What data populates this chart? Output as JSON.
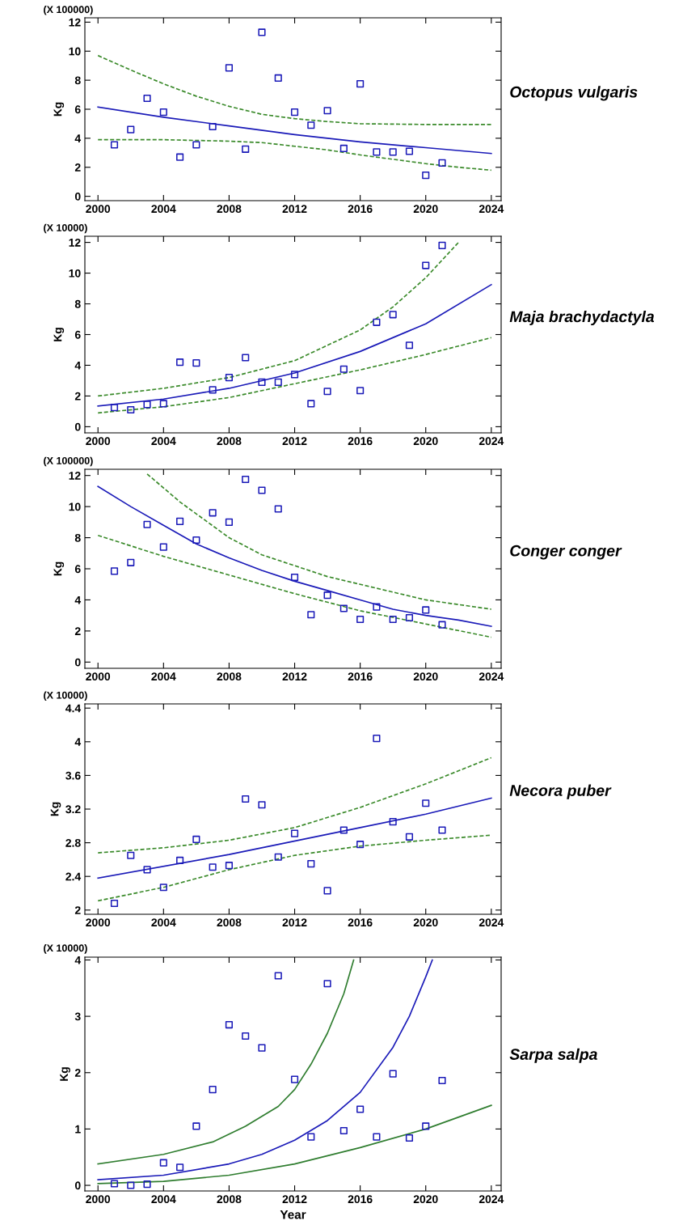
{
  "chart_data": [
    {
      "type": "scatter",
      "title": "Octopus vulgaris",
      "ylabel": "Kg",
      "annotations": [
        "(X 100000)"
      ],
      "xlim": [
        1999.2,
        2024.6
      ],
      "ylim": [
        -0.3,
        12.3
      ],
      "xticks": [
        2000,
        2004,
        2008,
        2012,
        2016,
        2020,
        2024
      ],
      "yticks": [
        0,
        2,
        4,
        6,
        8,
        10,
        12
      ],
      "series": [
        {
          "marker": "square",
          "color": "#1a1ab8",
          "x": [
            2001,
            2002,
            2003,
            2004,
            2005,
            2006,
            2007,
            2008,
            2009,
            2010,
            2011,
            2012,
            2013,
            2014,
            2015,
            2016,
            2017,
            2018,
            2019,
            2020,
            2021
          ],
          "values": [
            3.55,
            4.6,
            6.75,
            5.8,
            2.7,
            3.55,
            4.8,
            8.85,
            3.25,
            11.3,
            8.15,
            5.8,
            4.9,
            5.9,
            3.3,
            7.75,
            3.05,
            3.05,
            3.1,
            1.45,
            2.3
          ]
        },
        {
          "type": "line",
          "color": "#1a1ab8",
          "line_style": "solid",
          "x": [
            2000,
            2004,
            2008,
            2012,
            2016,
            2020,
            2024
          ],
          "values": [
            6.15,
            5.45,
            4.85,
            4.25,
            3.75,
            3.35,
            2.95
          ]
        },
        {
          "type": "line",
          "color": "#3a8a2a",
          "line_style": "dashed",
          "x": [
            2000,
            2002,
            2004,
            2006,
            2008,
            2010,
            2012,
            2014,
            2016,
            2020,
            2024
          ],
          "values": [
            9.7,
            8.7,
            7.75,
            6.9,
            6.2,
            5.65,
            5.35,
            5.15,
            5.0,
            4.95,
            4.95
          ]
        },
        {
          "type": "line",
          "color": "#3a8a2a",
          "line_style": "dashed",
          "x": [
            2000,
            2004,
            2008,
            2010,
            2012,
            2014,
            2016,
            2018,
            2020,
            2022,
            2024
          ],
          "values": [
            3.9,
            3.9,
            3.8,
            3.7,
            3.45,
            3.2,
            2.85,
            2.55,
            2.25,
            2.0,
            1.8
          ]
        }
      ]
    },
    {
      "type": "scatter",
      "title": "Maja brachydactyla",
      "ylabel": "Kg",
      "annotations": [
        "(X 10000)"
      ],
      "xlim": [
        1999.2,
        2024.6
      ],
      "ylim": [
        -0.4,
        12.4
      ],
      "xticks": [
        2000,
        2004,
        2008,
        2012,
        2016,
        2020,
        2024
      ],
      "yticks": [
        0,
        2,
        4,
        6,
        8,
        10,
        12
      ],
      "series": [
        {
          "marker": "square",
          "color": "#1a1ab8",
          "x": [
            2001,
            2002,
            2003,
            2004,
            2005,
            2006,
            2007,
            2008,
            2009,
            2010,
            2011,
            2012,
            2013,
            2014,
            2015,
            2016,
            2017,
            2018,
            2019,
            2020,
            2021
          ],
          "values": [
            1.25,
            1.1,
            1.45,
            1.5,
            4.2,
            4.15,
            2.4,
            3.2,
            4.5,
            2.9,
            2.9,
            3.4,
            1.5,
            2.3,
            3.75,
            2.35,
            6.8,
            7.3,
            5.3,
            10.5,
            11.8
          ]
        },
        {
          "type": "line",
          "color": "#1a1ab8",
          "line_style": "solid",
          "x": [
            2000,
            2004,
            2008,
            2012,
            2016,
            2020,
            2024
          ],
          "values": [
            1.35,
            1.8,
            2.5,
            3.5,
            4.9,
            6.7,
            9.25
          ]
        },
        {
          "type": "line",
          "color": "#3a8a2a",
          "line_style": "dashed",
          "x": [
            2000,
            2004,
            2008,
            2012,
            2016,
            2018,
            2020,
            2022
          ],
          "values": [
            2.0,
            2.5,
            3.2,
            4.3,
            6.3,
            7.8,
            9.7,
            12.0
          ]
        },
        {
          "type": "line",
          "color": "#3a8a2a",
          "line_style": "dashed",
          "x": [
            2000,
            2004,
            2008,
            2012,
            2016,
            2020,
            2024
          ],
          "values": [
            0.9,
            1.3,
            1.9,
            2.8,
            3.7,
            4.7,
            5.8
          ]
        }
      ]
    },
    {
      "type": "scatter",
      "title": "Conger conger",
      "ylabel": "Kg",
      "annotations": [
        "(X 100000)"
      ],
      "xlim": [
        1999.2,
        2024.6
      ],
      "ylim": [
        -0.4,
        12.4
      ],
      "xticks": [
        2000,
        2004,
        2008,
        2012,
        2016,
        2020,
        2024
      ],
      "yticks": [
        0,
        2,
        4,
        6,
        8,
        10,
        12
      ],
      "series": [
        {
          "marker": "square",
          "color": "#1a1ab8",
          "x": [
            2001,
            2002,
            2003,
            2004,
            2005,
            2006,
            2007,
            2008,
            2009,
            2010,
            2011,
            2012,
            2013,
            2014,
            2015,
            2016,
            2017,
            2018,
            2019,
            2020,
            2021
          ],
          "values": [
            5.85,
            6.4,
            8.85,
            7.4,
            9.05,
            7.85,
            9.6,
            9.0,
            11.75,
            11.05,
            9.85,
            5.45,
            3.05,
            4.3,
            3.45,
            2.75,
            3.55,
            2.75,
            2.85,
            3.35,
            2.4
          ]
        },
        {
          "type": "line",
          "color": "#1a1ab8",
          "line_style": "solid",
          "x": [
            2000,
            2002,
            2004,
            2006,
            2008,
            2010,
            2012,
            2014,
            2016,
            2018,
            2020,
            2022,
            2024
          ],
          "values": [
            11.3,
            10.0,
            8.8,
            7.6,
            6.7,
            5.9,
            5.2,
            4.6,
            4.0,
            3.4,
            3.0,
            2.7,
            2.3
          ]
        },
        {
          "type": "line",
          "color": "#3a8a2a",
          "line_style": "dashed",
          "x": [
            2003,
            2005,
            2008,
            2010,
            2012,
            2014,
            2016,
            2018,
            2020,
            2022,
            2024
          ],
          "values": [
            12.1,
            10.3,
            8.0,
            6.9,
            6.2,
            5.5,
            5.0,
            4.5,
            4.0,
            3.7,
            3.4
          ]
        },
        {
          "type": "line",
          "color": "#3a8a2a",
          "line_style": "dashed",
          "x": [
            2000,
            2004,
            2008,
            2012,
            2016,
            2020,
            2024
          ],
          "values": [
            8.15,
            6.8,
            5.6,
            4.4,
            3.3,
            2.45,
            1.6
          ]
        }
      ]
    },
    {
      "type": "scatter",
      "title": "Necora puber",
      "ylabel": "Kg",
      "annotations": [
        "(X 10000)"
      ],
      "xlim": [
        1999.2,
        2024.6
      ],
      "ylim": [
        1.95,
        4.45
      ],
      "xticks": [
        2000,
        2004,
        2008,
        2012,
        2016,
        2020,
        2024
      ],
      "yticks": [
        2,
        2.4,
        2.8,
        3.2,
        3.6,
        4,
        4.4
      ],
      "series": [
        {
          "marker": "square",
          "color": "#1a1ab8",
          "x": [
            2001,
            2002,
            2003,
            2004,
            2005,
            2006,
            2007,
            2008,
            2009,
            2010,
            2011,
            2012,
            2013,
            2014,
            2015,
            2016,
            2017,
            2018,
            2019,
            2020,
            2021
          ],
          "values": [
            2.08,
            2.65,
            2.48,
            2.27,
            2.59,
            2.84,
            2.51,
            2.53,
            3.32,
            3.25,
            2.63,
            2.91,
            2.55,
            2.23,
            2.95,
            2.78,
            4.04,
            3.05,
            2.87,
            3.27,
            2.95
          ]
        },
        {
          "type": "line",
          "color": "#1a1ab8",
          "line_style": "solid",
          "x": [
            2000,
            2008,
            2016,
            2020,
            2024
          ],
          "values": [
            2.38,
            2.66,
            2.98,
            3.14,
            3.33
          ]
        },
        {
          "type": "line",
          "color": "#3a8a2a",
          "line_style": "dashed",
          "x": [
            2000,
            2004,
            2008,
            2012,
            2016,
            2020,
            2024
          ],
          "values": [
            2.68,
            2.74,
            2.83,
            2.98,
            3.22,
            3.5,
            3.81
          ]
        },
        {
          "type": "line",
          "color": "#3a8a2a",
          "line_style": "dashed",
          "x": [
            2000,
            2004,
            2008,
            2012,
            2016,
            2020,
            2024
          ],
          "values": [
            2.11,
            2.27,
            2.48,
            2.65,
            2.76,
            2.83,
            2.89
          ]
        }
      ]
    },
    {
      "type": "scatter",
      "title": "Sarpa salpa",
      "xlabel": "Year",
      "ylabel": "Kg",
      "annotations": [
        "(X 10000)"
      ],
      "xlim": [
        1999.2,
        2024.6
      ],
      "ylim": [
        -0.1,
        4.05
      ],
      "xticks": [
        2000,
        2004,
        2008,
        2012,
        2016,
        2020,
        2024
      ],
      "yticks": [
        0,
        1,
        2,
        3,
        4
      ],
      "series": [
        {
          "marker": "square",
          "color": "#1a1ab8",
          "x": [
            2001,
            2002,
            2003,
            2004,
            2005,
            2006,
            2007,
            2008,
            2009,
            2010,
            2011,
            2012,
            2013,
            2014,
            2015,
            2016,
            2017,
            2018,
            2019,
            2020,
            2021
          ],
          "values": [
            0.03,
            0.0,
            0.02,
            0.4,
            0.32,
            1.05,
            1.7,
            2.85,
            2.65,
            2.44,
            3.72,
            1.88,
            0.86,
            3.58,
            0.97,
            1.35,
            0.86,
            1.98,
            0.84,
            1.05,
            1.86
          ]
        },
        {
          "type": "line",
          "color": "#1a1ab8",
          "line_style": "solid",
          "x": [
            2000,
            2004,
            2008,
            2010,
            2012,
            2014,
            2016,
            2018,
            2019,
            2020,
            2020.4
          ],
          "values": [
            0.1,
            0.18,
            0.38,
            0.55,
            0.8,
            1.15,
            1.65,
            2.45,
            3.0,
            3.7,
            4.0
          ]
        },
        {
          "type": "line",
          "color": "#2f7d2f",
          "line_style": "solid",
          "x": [
            2000,
            2004,
            2007,
            2009,
            2011,
            2012,
            2013,
            2014,
            2015,
            2015.6
          ],
          "values": [
            0.38,
            0.55,
            0.77,
            1.05,
            1.4,
            1.7,
            2.15,
            2.7,
            3.4,
            4.0
          ]
        },
        {
          "type": "line",
          "color": "#2f7d2f",
          "line_style": "solid",
          "x": [
            2000,
            2004,
            2008,
            2012,
            2016,
            2020,
            2024
          ],
          "values": [
            0.03,
            0.07,
            0.18,
            0.38,
            0.67,
            1.0,
            1.42
          ]
        }
      ]
    }
  ]
}
